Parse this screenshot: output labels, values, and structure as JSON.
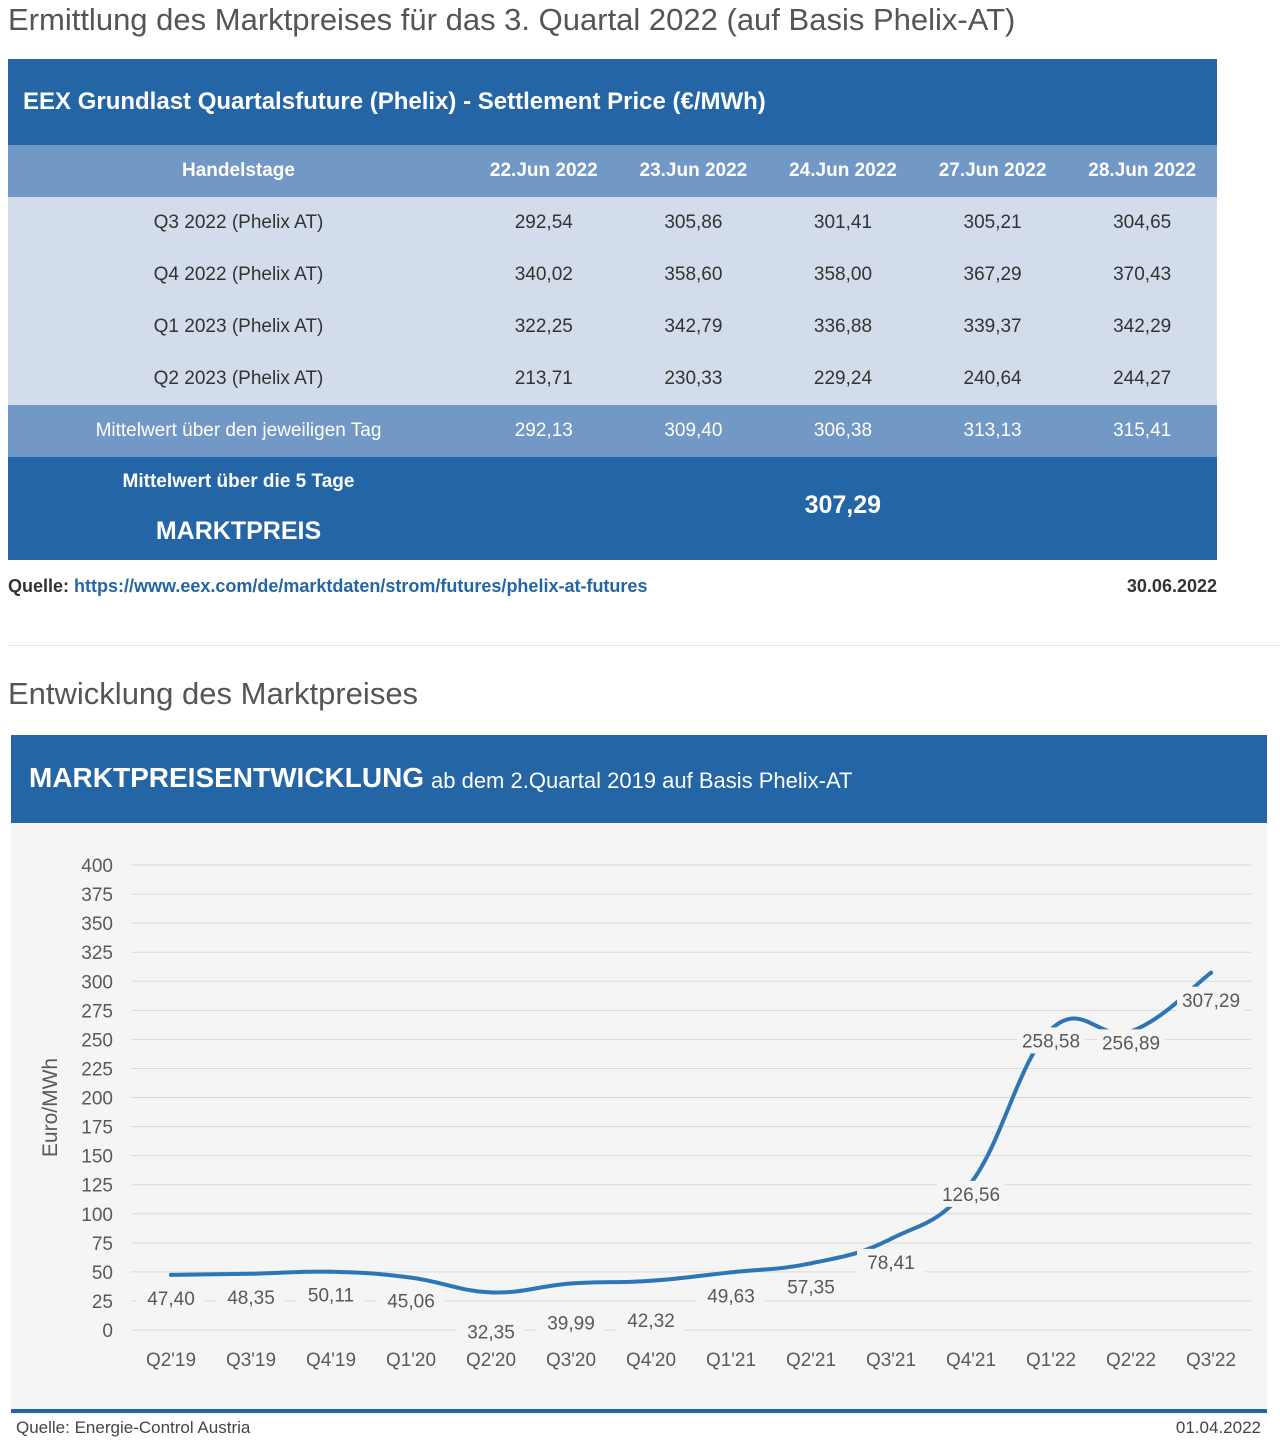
{
  "section1_title": "Ermittlung des Marktpreises für das 3. Quartal 2022 (auf Basis Phelix-AT)",
  "table": {
    "title": "EEX Grundlast Quartalsfuture (Phelix) - Settlement Price (€/MWh)",
    "header": [
      "Handelstage",
      "22.Jun 2022",
      "23.Jun 2022",
      "24.Jun 2022",
      "27.Jun 2022",
      "28.Jun 2022"
    ],
    "rows": [
      [
        "Q3 2022 (Phelix AT)",
        "292,54",
        "305,86",
        "301,41",
        "305,21",
        "304,65"
      ],
      [
        "Q4 2022 (Phelix AT)",
        "340,02",
        "358,60",
        "358,00",
        "367,29",
        "370,43"
      ],
      [
        "Q1 2023 (Phelix AT)",
        "322,25",
        "342,79",
        "336,88",
        "339,37",
        "342,29"
      ],
      [
        "Q2 2023 (Phelix AT)",
        "213,71",
        "230,33",
        "229,24",
        "240,64",
        "244,27"
      ]
    ],
    "avg_row": [
      "Mittelwert über den jeweiligen Tag",
      "292,13",
      "309,40",
      "306,38",
      "313,13",
      "315,41"
    ],
    "final_label1": "Mittelwert über die 5 Tage",
    "final_label2": "MARKTPREIS",
    "final_value": "307,29"
  },
  "source1": {
    "label": "Quelle: ",
    "url": "https://www.eex.com/de/marktdaten/strom/futures/phelix-at-futures",
    "date": "30.06.2022"
  },
  "section2_title": "Entwicklung des Marktpreises",
  "chart_banner": {
    "title": "MARKTPREISENTWICKLUNG",
    "subtitle": "ab dem 2.Quartal 2019 auf Basis Phelix-AT"
  },
  "chart_data": {
    "type": "line",
    "categories": [
      "Q2'19",
      "Q3'19",
      "Q4'19",
      "Q1'20",
      "Q2'20",
      "Q3'20",
      "Q4'20",
      "Q1'21",
      "Q2'21",
      "Q3'21",
      "Q4'21",
      "Q1'22",
      "Q2'22",
      "Q3'22"
    ],
    "values": [
      47.4,
      48.35,
      50.11,
      45.06,
      32.35,
      39.99,
      42.32,
      49.63,
      57.35,
      78.41,
      126.56,
      258.58,
      256.89,
      307.29
    ],
    "value_labels": [
      "47,40",
      "48,35",
      "50,11",
      "45,06",
      "32,35",
      "39,99",
      "42,32",
      "49,63",
      "57,35",
      "78,41",
      "126,56",
      "258,58",
      "256,89",
      "307,29"
    ],
    "ylabel": "Euro/MWh",
    "ylim": [
      0,
      400
    ],
    "yticks": [
      0,
      25,
      50,
      75,
      100,
      125,
      150,
      175,
      200,
      225,
      250,
      275,
      300,
      325,
      350,
      375,
      400
    ],
    "grid": true,
    "line_color": "#2e75b6"
  },
  "source2": {
    "label": "Quelle: Energie-Control Austria",
    "date": "01.04.2022"
  }
}
